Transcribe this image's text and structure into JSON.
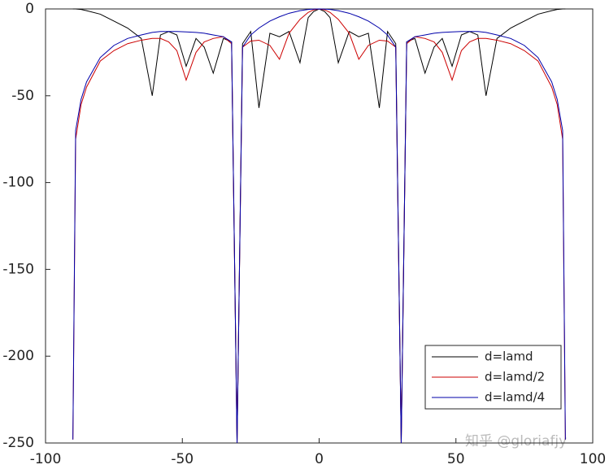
{
  "chart_data": {
    "type": "line",
    "x": [
      -90,
      -89,
      -87,
      -85,
      -80,
      -75,
      -70,
      -65,
      -61,
      -58,
      -55,
      -52,
      -48.6,
      -45,
      -42,
      -38.7,
      -35,
      -32,
      -30,
      -28,
      -25,
      -22,
      -18,
      -14.5,
      -11,
      -7,
      -4,
      -2,
      0,
      2,
      4,
      7,
      11,
      14.5,
      18,
      22,
      25,
      28,
      30,
      32,
      35,
      38.7,
      42,
      45,
      48.6,
      52,
      55,
      58,
      61,
      65,
      70,
      75,
      80,
      85,
      87,
      89,
      90
    ],
    "series": [
      {
        "name": "d=lamd",
        "color": "#000000",
        "values": [
          0,
          0,
          -0.3,
          -1,
          -3,
          -7,
          -11,
          -17,
          -50,
          -15,
          -13,
          -15,
          -33,
          -17,
          -22,
          -37,
          -17,
          -19,
          -250,
          -20,
          -13,
          -57,
          -14,
          -16,
          -13,
          -31,
          -5,
          -1.5,
          0,
          -1.5,
          -5,
          -31,
          -13,
          -16,
          -14,
          -57,
          -13,
          -20,
          -250,
          -19,
          -17,
          -37,
          -22,
          -17,
          -33,
          -15,
          -13,
          -15,
          -50,
          -17,
          -11,
          -7,
          -3,
          -1,
          -0.3,
          0,
          0
        ]
      },
      {
        "name": "d=lamd/2",
        "color": "#cc0000",
        "values": [
          -248,
          -75,
          -55,
          -45,
          -30,
          -24,
          -20,
          -18,
          -17,
          -17,
          -19,
          -24,
          -41,
          -25,
          -19,
          -17,
          -16,
          -20,
          -250,
          -22,
          -18.5,
          -18,
          -21,
          -29,
          -14,
          -6,
          -2,
          -0.5,
          0,
          -0.5,
          -2,
          -6,
          -14,
          -29,
          -21,
          -18,
          -18.5,
          -22,
          -250,
          -20,
          -16,
          -17,
          -19,
          -25,
          -41,
          -24,
          -19,
          -17,
          -17,
          -18,
          -20,
          -24,
          -30,
          -45,
          -55,
          -75,
          -248
        ]
      },
      {
        "name": "d=lamd/4",
        "color": "#0000aa",
        "values": [
          -248,
          -70,
          -52,
          -42,
          -28,
          -21,
          -17,
          -15,
          -13.5,
          -13,
          -13,
          -13,
          -13.2,
          -13.5,
          -14,
          -15,
          -16,
          -19,
          -250,
          -22,
          -15,
          -11,
          -7,
          -4.5,
          -2.5,
          -1,
          -0.3,
          -0.1,
          0,
          -0.1,
          -0.3,
          -1,
          -2.5,
          -4.5,
          -7,
          -11,
          -15,
          -22,
          -250,
          -19,
          -16,
          -15,
          -14,
          -13.5,
          -13.2,
          -13,
          -13,
          -13,
          -13.5,
          -15,
          -17,
          -21,
          -28,
          -42,
          -52,
          -70,
          -248
        ]
      }
    ],
    "xlim": [
      -100,
      100
    ],
    "xticks": [
      -100,
      -50,
      0,
      50,
      100
    ],
    "ylim": [
      -250,
      0
    ],
    "yticks": [
      0,
      -50,
      -100,
      -150,
      -200,
      -250
    ],
    "legend": "lower right",
    "watermark": "知乎 @gloriafjy"
  }
}
